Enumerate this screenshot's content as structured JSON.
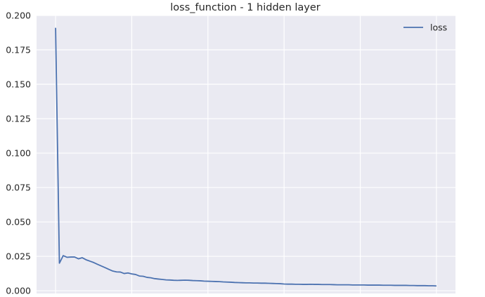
{
  "chart_data": {
    "type": "line",
    "title": "loss_function - 1 hidden layer",
    "xlabel": "",
    "ylabel": "",
    "ylim": [
      -0.002,
      0.2
    ],
    "xlim": [
      -5,
      105
    ],
    "xticks": [
      0,
      20,
      40,
      60,
      80,
      100
    ],
    "yticks": [
      0.0,
      0.025,
      0.05,
      0.075,
      0.1,
      0.125,
      0.15,
      0.175,
      0.2
    ],
    "ytick_labels": [
      "0.000",
      "0.025",
      "0.050",
      "0.075",
      "0.100",
      "0.125",
      "0.150",
      "0.175",
      "0.200"
    ],
    "grid": true,
    "background": "#eaeaf2",
    "legend": {
      "position": "top-right",
      "entries": [
        "loss"
      ]
    },
    "series": [
      {
        "name": "loss",
        "color": "#4c72b0",
        "x": [
          0,
          1,
          2,
          3,
          4,
          5,
          6,
          7,
          8,
          9,
          10,
          11,
          12,
          13,
          14,
          15,
          16,
          17,
          18,
          19,
          20,
          21,
          22,
          23,
          24,
          25,
          26,
          27,
          28,
          29,
          30,
          31,
          32,
          33,
          34,
          35,
          36,
          37,
          38,
          39,
          40,
          41,
          42,
          43,
          44,
          45,
          46,
          47,
          48,
          49,
          50,
          51,
          52,
          53,
          54,
          55,
          56,
          57,
          58,
          59,
          60,
          61,
          62,
          63,
          64,
          65,
          66,
          67,
          68,
          69,
          70,
          71,
          72,
          73,
          74,
          75,
          76,
          77,
          78,
          79,
          80,
          81,
          82,
          83,
          84,
          85,
          86,
          87,
          88,
          89,
          90,
          91,
          92,
          93,
          94,
          95,
          96,
          97,
          98,
          99,
          100
        ],
        "values": [
          0.191,
          0.02,
          0.0255,
          0.0243,
          0.0245,
          0.0245,
          0.0232,
          0.024,
          0.0225,
          0.0215,
          0.0205,
          0.0192,
          0.018,
          0.0168,
          0.0155,
          0.0143,
          0.0137,
          0.0136,
          0.0125,
          0.0129,
          0.0122,
          0.0118,
          0.0107,
          0.0105,
          0.0097,
          0.0094,
          0.0088,
          0.0085,
          0.0082,
          0.0079,
          0.0078,
          0.0076,
          0.0075,
          0.0076,
          0.0077,
          0.0076,
          0.0074,
          0.0073,
          0.0072,
          0.007,
          0.0069,
          0.0068,
          0.0067,
          0.0066,
          0.0064,
          0.0063,
          0.0062,
          0.006,
          0.0059,
          0.0058,
          0.0057,
          0.0057,
          0.0056,
          0.0056,
          0.0055,
          0.0055,
          0.0054,
          0.0053,
          0.0052,
          0.0051,
          0.0049,
          0.0048,
          0.0048,
          0.0047,
          0.0047,
          0.0046,
          0.0046,
          0.0047,
          0.0046,
          0.0046,
          0.0045,
          0.0045,
          0.0045,
          0.0044,
          0.0043,
          0.0043,
          0.0043,
          0.0043,
          0.0042,
          0.0042,
          0.0042,
          0.0042,
          0.0041,
          0.0041,
          0.0041,
          0.0041,
          0.004,
          0.004,
          0.004,
          0.0039,
          0.0039,
          0.0039,
          0.0039,
          0.0038,
          0.0038,
          0.0037,
          0.0037,
          0.0037,
          0.0036,
          0.0036,
          0.0035
        ]
      }
    ]
  }
}
